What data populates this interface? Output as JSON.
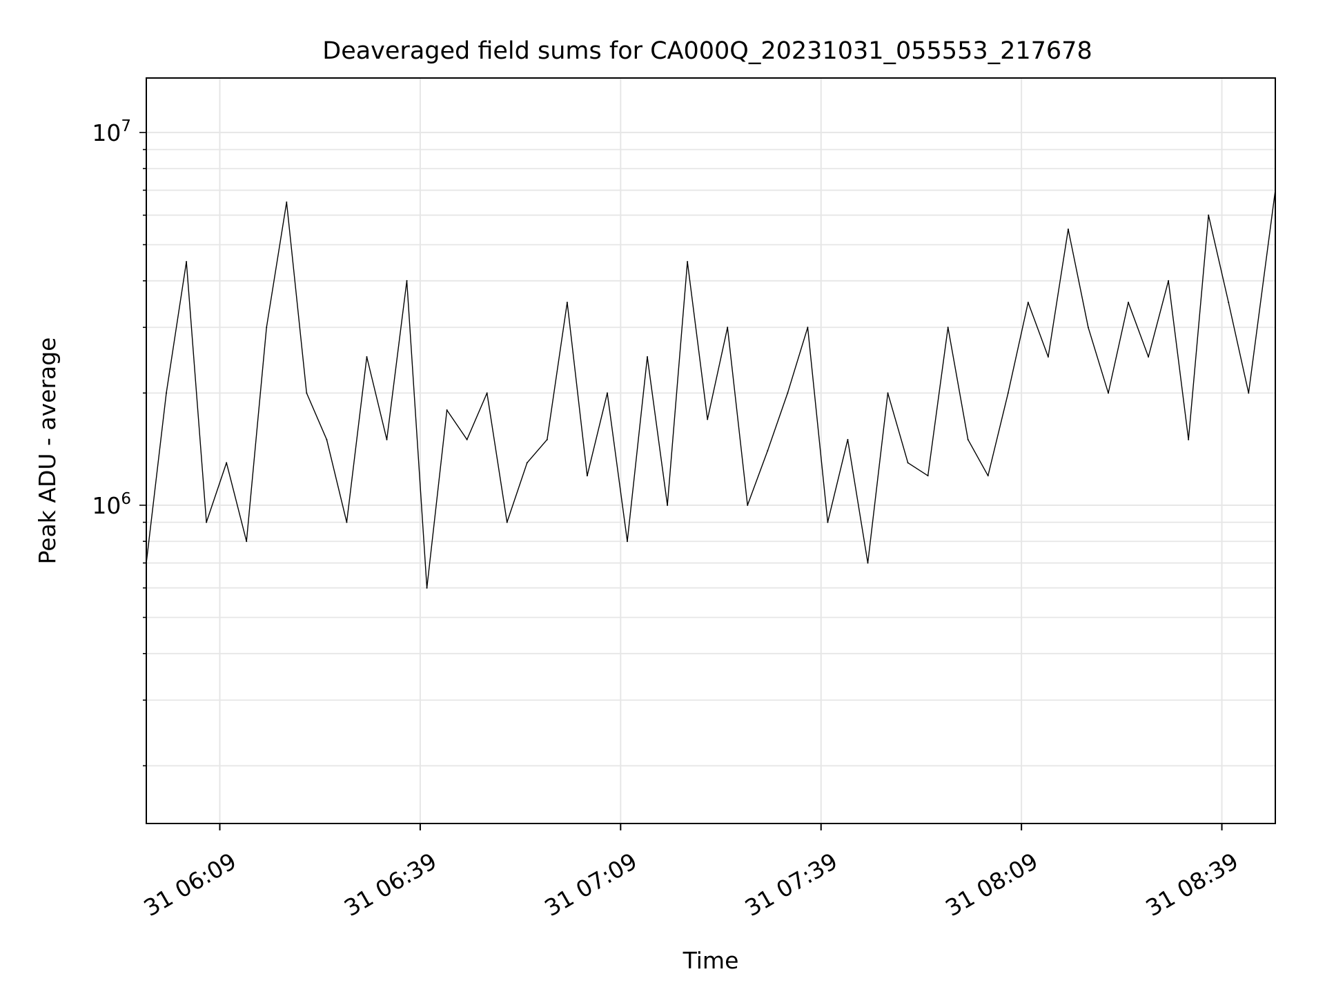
{
  "chart_data": {
    "type": "line",
    "title": "Deaveraged field sums for CA000Q_20231031_055553_217678",
    "xlabel": "Time",
    "ylabel": "Peak ADU - average",
    "y_scale": "log",
    "ylim": [
      140000,
      14000000
    ],
    "xlim": [
      "2023-10-31 05:58",
      "2023-10-31 08:47"
    ],
    "x_ticks": [
      "2023-10-31 06:09",
      "2023-10-31 06:39",
      "2023-10-31 07:09",
      "2023-10-31 07:39",
      "2023-10-31 08:09",
      "2023-10-31 08:39"
    ],
    "x_tick_labels": [
      "31 06:09",
      "31 06:39",
      "31 07:09",
      "31 07:39",
      "31 08:09",
      "31 08:39"
    ],
    "y_ticks": [
      1000000,
      10000000
    ],
    "y_tick_labels": [
      {
        "base": "10",
        "exp": "6"
      },
      {
        "base": "10",
        "exp": "7"
      }
    ],
    "grid": true,
    "line_color": "#000000",
    "series": [
      {
        "x": [
          "2023-10-31 05:58",
          "2023-10-31 06:01",
          "2023-10-31 06:04",
          "2023-10-31 06:07",
          "2023-10-31 06:10",
          "2023-10-31 06:13",
          "2023-10-31 06:16",
          "2023-10-31 06:19",
          "2023-10-31 06:22",
          "2023-10-31 06:25",
          "2023-10-31 06:28",
          "2023-10-31 06:31",
          "2023-10-31 06:34",
          "2023-10-31 06:37",
          "2023-10-31 06:40",
          "2023-10-31 06:43",
          "2023-10-31 06:46",
          "2023-10-31 06:49",
          "2023-10-31 06:52",
          "2023-10-31 06:55",
          "2023-10-31 06:58",
          "2023-10-31 07:01",
          "2023-10-31 07:04",
          "2023-10-31 07:07",
          "2023-10-31 07:10",
          "2023-10-31 07:13",
          "2023-10-31 07:16",
          "2023-10-31 07:19",
          "2023-10-31 07:22",
          "2023-10-31 07:25",
          "2023-10-31 07:28",
          "2023-10-31 07:31",
          "2023-10-31 07:34",
          "2023-10-31 07:37",
          "2023-10-31 07:40",
          "2023-10-31 07:43",
          "2023-10-31 07:46",
          "2023-10-31 07:49",
          "2023-10-31 07:52",
          "2023-10-31 07:55",
          "2023-10-31 07:58",
          "2023-10-31 08:01",
          "2023-10-31 08:04",
          "2023-10-31 08:07",
          "2023-10-31 08:10",
          "2023-10-31 08:13",
          "2023-10-31 08:16",
          "2023-10-31 08:19",
          "2023-10-31 08:22",
          "2023-10-31 08:25",
          "2023-10-31 08:28",
          "2023-10-31 08:31",
          "2023-10-31 08:34",
          "2023-10-31 08:37",
          "2023-10-31 08:40",
          "2023-10-31 08:43",
          "2023-10-31 08:47"
        ],
        "y": [
          700000,
          2000000,
          4500000,
          900000,
          1300000,
          800000,
          3000000,
          6500000,
          2000000,
          1500000,
          900000,
          2500000,
          1500000,
          4000000,
          600000,
          1800000,
          1500000,
          2000000,
          900000,
          1300000,
          1500000,
          3500000,
          1200000,
          2000000,
          800000,
          2500000,
          1000000,
          4500000,
          1700000,
          3000000,
          1000000,
          1400000,
          2000000,
          3000000,
          900000,
          1500000,
          700000,
          2000000,
          1300000,
          1200000,
          3000000,
          1500000,
          1200000,
          2000000,
          3500000,
          2500000,
          5500000,
          3000000,
          2000000,
          3500000,
          2500000,
          4000000,
          1500000,
          6000000,
          3500000,
          2000000,
          7000000
        ]
      }
    ]
  }
}
